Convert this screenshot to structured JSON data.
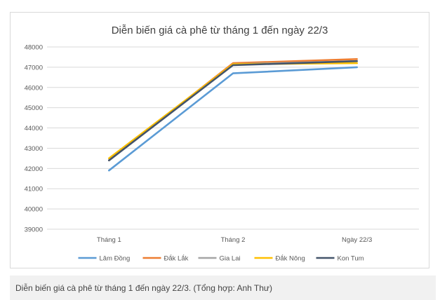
{
  "caption": "Diễn biến giá cà phê từ tháng 1 đến ngày 22/3. (Tổng hợp: Anh Thư)",
  "chart_data": {
    "type": "line",
    "title": "Diễn biến giá cà phê từ tháng 1 đến ngày 22/3",
    "xlabel": "",
    "ylabel": "",
    "categories": [
      "Tháng 1",
      "Tháng 2",
      "Ngày 22/3"
    ],
    "ylim": [
      39000,
      48000
    ],
    "yticks": [
      39000,
      40000,
      41000,
      42000,
      43000,
      44000,
      45000,
      46000,
      47000,
      48000
    ],
    "grid": true,
    "legend_position": "bottom",
    "series": [
      {
        "name": "Lâm Đồng",
        "color": "#5b9bd5",
        "values": [
          41900,
          46700,
          47000
        ]
      },
      {
        "name": "Đắk Lắk",
        "color": "#ed7d31",
        "values": [
          42400,
          47200,
          47400
        ]
      },
      {
        "name": "Gia Lai",
        "color": "#a5a5a5",
        "values": [
          42400,
          47150,
          47300
        ]
      },
      {
        "name": "Đắk Nông",
        "color": "#ffc000",
        "values": [
          42500,
          47150,
          47200
        ]
      },
      {
        "name": "Kon Tum",
        "color": "#44546a",
        "values": [
          42400,
          47100,
          47300
        ]
      }
    ]
  }
}
